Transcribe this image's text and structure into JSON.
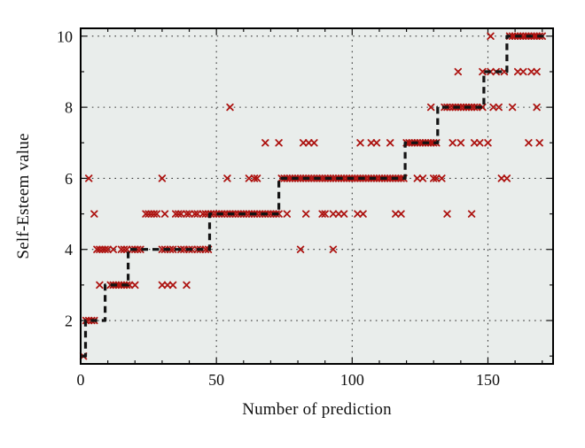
{
  "figure": {
    "xlabel": "Number of prediction",
    "ylabel": "Self-Esteem value"
  },
  "chart_data": {
    "type": "scatter",
    "title": "",
    "xlabel": "Number of prediction",
    "ylabel": "Self-Esteem value",
    "xlim": [
      0,
      174
    ],
    "ylim": [
      0.78,
      10.22
    ],
    "xticks": [
      0,
      50,
      100,
      150
    ],
    "yticks": [
      2,
      4,
      6,
      8,
      10
    ],
    "x_minor_step": 10,
    "y_minor_step": 1,
    "grid": "dotted",
    "plot_bg": "#e9edeb",
    "border_color": "#000000",
    "grid_color": "#3a3a3a",
    "legend": null,
    "series": [
      {
        "name": "x-markers",
        "type": "scatter",
        "marker": "x",
        "color": "#ad1411",
        "points": [
          [
            1,
            1
          ],
          [
            2,
            2
          ],
          [
            3,
            2
          ],
          [
            4,
            2
          ],
          [
            5,
            2
          ],
          [
            3,
            6
          ],
          [
            5,
            5
          ],
          [
            6,
            4
          ],
          [
            7,
            4
          ],
          [
            8,
            4
          ],
          [
            9,
            4
          ],
          [
            10,
            4
          ],
          [
            12,
            4
          ],
          [
            7,
            3
          ],
          [
            11,
            3
          ],
          [
            12,
            3
          ],
          [
            13,
            3
          ],
          [
            14,
            3
          ],
          [
            15,
            3
          ],
          [
            16,
            3
          ],
          [
            17,
            3
          ],
          [
            18,
            3
          ],
          [
            20,
            3
          ],
          [
            30,
            3
          ],
          [
            32,
            3
          ],
          [
            34,
            3
          ],
          [
            39,
            3
          ],
          [
            15,
            4
          ],
          [
            16,
            4
          ],
          [
            17,
            4
          ],
          [
            19,
            4
          ],
          [
            20,
            4
          ],
          [
            21,
            4
          ],
          [
            22,
            4
          ],
          [
            30,
            4
          ],
          [
            31,
            4
          ],
          [
            33,
            4
          ],
          [
            34,
            4
          ],
          [
            37,
            4
          ],
          [
            38,
            4
          ],
          [
            40,
            4
          ],
          [
            41,
            4
          ],
          [
            43,
            4
          ],
          [
            44,
            4
          ],
          [
            46,
            4
          ],
          [
            47,
            4
          ],
          [
            24,
            5
          ],
          [
            25,
            5
          ],
          [
            26,
            5
          ],
          [
            27,
            5
          ],
          [
            28,
            5
          ],
          [
            31,
            5
          ],
          [
            35,
            5
          ],
          [
            36,
            5
          ],
          [
            37,
            5
          ],
          [
            39,
            5
          ],
          [
            40,
            5
          ],
          [
            42,
            5
          ],
          [
            43,
            5
          ],
          [
            45,
            5
          ],
          [
            46,
            5
          ],
          [
            47,
            5
          ],
          [
            48,
            5
          ],
          [
            49,
            5
          ],
          [
            50,
            5
          ],
          [
            51,
            5
          ],
          [
            52,
            5
          ],
          [
            53,
            5
          ],
          [
            54,
            5
          ],
          [
            55,
            5
          ],
          [
            56,
            5
          ],
          [
            57,
            5
          ],
          [
            58,
            5
          ],
          [
            59,
            5
          ],
          [
            60,
            5
          ],
          [
            61,
            5
          ],
          [
            62,
            5
          ],
          [
            63,
            5
          ],
          [
            64,
            5
          ],
          [
            65,
            5
          ],
          [
            66,
            5
          ],
          [
            67,
            5
          ],
          [
            68,
            5
          ],
          [
            69,
            5
          ],
          [
            70,
            5
          ],
          [
            71,
            5
          ],
          [
            72,
            5
          ],
          [
            73,
            5
          ],
          [
            76,
            5
          ],
          [
            83,
            5
          ],
          [
            89,
            5
          ],
          [
            90,
            5
          ],
          [
            93,
            5
          ],
          [
            95,
            5
          ],
          [
            97,
            5
          ],
          [
            102,
            5
          ],
          [
            104,
            5
          ],
          [
            116,
            5
          ],
          [
            118,
            5
          ],
          [
            135,
            5
          ],
          [
            144,
            5
          ],
          [
            30,
            6
          ],
          [
            54,
            6
          ],
          [
            62,
            6
          ],
          [
            64,
            6
          ],
          [
            65,
            6
          ],
          [
            74,
            6
          ],
          [
            75,
            6
          ],
          [
            76,
            6
          ],
          [
            77,
            6
          ],
          [
            78,
            6
          ],
          [
            79,
            6
          ],
          [
            80,
            6
          ],
          [
            81,
            6
          ],
          [
            82,
            6
          ],
          [
            83,
            6
          ],
          [
            84,
            6
          ],
          [
            85,
            6
          ],
          [
            86,
            6
          ],
          [
            87,
            6
          ],
          [
            88,
            6
          ],
          [
            89,
            6
          ],
          [
            90,
            6
          ],
          [
            91,
            6
          ],
          [
            92,
            6
          ],
          [
            93,
            6
          ],
          [
            94,
            6
          ],
          [
            95,
            6
          ],
          [
            96,
            6
          ],
          [
            97,
            6
          ],
          [
            98,
            6
          ],
          [
            99,
            6
          ],
          [
            100,
            6
          ],
          [
            101,
            6
          ],
          [
            102,
            6
          ],
          [
            103,
            6
          ],
          [
            104,
            6
          ],
          [
            105,
            6
          ],
          [
            106,
            6
          ],
          [
            107,
            6
          ],
          [
            108,
            6
          ],
          [
            109,
            6
          ],
          [
            110,
            6
          ],
          [
            111,
            6
          ],
          [
            112,
            6
          ],
          [
            113,
            6
          ],
          [
            114,
            6
          ],
          [
            115,
            6
          ],
          [
            116,
            6
          ],
          [
            117,
            6
          ],
          [
            118,
            6
          ],
          [
            119,
            6
          ],
          [
            124,
            6
          ],
          [
            126,
            6
          ],
          [
            130,
            6
          ],
          [
            131,
            6
          ],
          [
            133,
            6
          ],
          [
            155,
            6
          ],
          [
            157,
            6
          ],
          [
            68,
            7
          ],
          [
            73,
            7
          ],
          [
            82,
            7
          ],
          [
            84,
            7
          ],
          [
            86,
            7
          ],
          [
            103,
            7
          ],
          [
            107,
            7
          ],
          [
            109,
            7
          ],
          [
            114,
            7
          ],
          [
            120,
            7
          ],
          [
            121,
            7
          ],
          [
            122,
            7
          ],
          [
            123,
            7
          ],
          [
            124,
            7
          ],
          [
            125,
            7
          ],
          [
            126,
            7
          ],
          [
            127,
            7
          ],
          [
            128,
            7
          ],
          [
            129,
            7
          ],
          [
            130,
            7
          ],
          [
            131,
            7
          ],
          [
            137,
            7
          ],
          [
            140,
            7
          ],
          [
            145,
            7
          ],
          [
            147,
            7
          ],
          [
            150,
            7
          ],
          [
            165,
            7
          ],
          [
            169,
            7
          ],
          [
            55,
            8
          ],
          [
            129,
            8
          ],
          [
            134,
            8
          ],
          [
            135,
            8
          ],
          [
            136,
            8
          ],
          [
            137,
            8
          ],
          [
            138,
            8
          ],
          [
            139,
            8
          ],
          [
            140,
            8
          ],
          [
            141,
            8
          ],
          [
            142,
            8
          ],
          [
            143,
            8
          ],
          [
            144,
            8
          ],
          [
            145,
            8
          ],
          [
            146,
            8
          ],
          [
            148,
            8
          ],
          [
            152,
            8
          ],
          [
            154,
            8
          ],
          [
            159,
            8
          ],
          [
            168,
            8
          ],
          [
            81,
            4
          ],
          [
            93,
            4
          ],
          [
            139,
            9
          ],
          [
            148,
            9
          ],
          [
            151,
            9
          ],
          [
            153,
            9
          ],
          [
            156,
            9
          ],
          [
            161,
            9
          ],
          [
            163,
            9
          ],
          [
            166,
            9
          ],
          [
            168,
            9
          ],
          [
            151,
            10
          ],
          [
            158,
            10
          ],
          [
            159,
            10
          ],
          [
            160,
            10
          ],
          [
            161,
            10
          ],
          [
            162,
            10
          ],
          [
            163,
            10
          ],
          [
            164,
            10
          ],
          [
            165,
            10
          ],
          [
            166,
            10
          ],
          [
            167,
            10
          ],
          [
            168,
            10
          ],
          [
            169,
            10
          ],
          [
            170,
            10
          ]
        ]
      },
      {
        "name": "dashed-step-line",
        "type": "step-line",
        "line_style": "dashed",
        "color": "#141414",
        "steps": [
          {
            "y": 1,
            "x0": 0.5,
            "x1": 1.8
          },
          {
            "y": 2,
            "x0": 1.8,
            "x1": 9.0
          },
          {
            "y": 3,
            "x0": 9.0,
            "x1": 17.5
          },
          {
            "y": 4,
            "x0": 17.5,
            "x1": 47.5
          },
          {
            "y": 5,
            "x0": 47.5,
            "x1": 73.0
          },
          {
            "y": 6,
            "x0": 73.0,
            "x1": 119.5
          },
          {
            "y": 7,
            "x0": 119.5,
            "x1": 131.5
          },
          {
            "y": 8,
            "x0": 131.5,
            "x1": 148.5
          },
          {
            "y": 9,
            "x0": 148.5,
            "x1": 157.0
          },
          {
            "y": 10,
            "x0": 157.0,
            "x1": 171.5
          }
        ]
      }
    ]
  }
}
